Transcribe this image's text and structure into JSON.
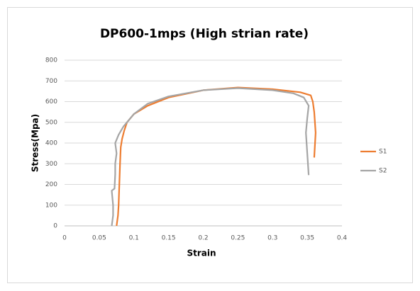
{
  "chart_data": {
    "type": "line",
    "title": "DP600-1mps (High strian rate)",
    "xlabel": "Strain",
    "ylabel": "Stress(Mpa)",
    "xlim": [
      0,
      0.4
    ],
    "xticks": [
      0,
      0.05,
      0.1,
      0.15,
      0.2,
      0.25,
      0.3,
      0.35,
      0.4
    ],
    "ylim": [
      0,
      800
    ],
    "yticks": [
      0,
      100,
      200,
      300,
      400,
      500,
      600,
      700,
      800
    ],
    "grid": true,
    "legend": "right",
    "series": [
      {
        "name": "S1",
        "color": "#ed7d31",
        "x": [
          0.075,
          0.077,
          0.078,
          0.079,
          0.08,
          0.081,
          0.083,
          0.086,
          0.09,
          0.1,
          0.12,
          0.15,
          0.2,
          0.25,
          0.3,
          0.34,
          0.355,
          0.358,
          0.36,
          0.362,
          0.36
        ],
        "values": [
          0,
          50,
          100,
          200,
          300,
          380,
          420,
          460,
          500,
          540,
          580,
          620,
          655,
          668,
          660,
          645,
          630,
          600,
          550,
          450,
          330
        ]
      },
      {
        "name": "S2",
        "color": "#a5a5a5",
        "x": [
          0.068,
          0.07,
          0.07,
          0.068,
          0.072,
          0.073,
          0.073,
          0.075,
          0.073,
          0.078,
          0.085,
          0.1,
          0.12,
          0.15,
          0.2,
          0.25,
          0.3,
          0.33,
          0.345,
          0.352,
          0.35,
          0.348,
          0.35,
          0.352
        ],
        "values": [
          0,
          50,
          100,
          170,
          180,
          250,
          300,
          350,
          400,
          440,
          480,
          540,
          590,
          625,
          655,
          665,
          655,
          640,
          620,
          580,
          520,
          450,
          350,
          245
        ]
      }
    ]
  }
}
